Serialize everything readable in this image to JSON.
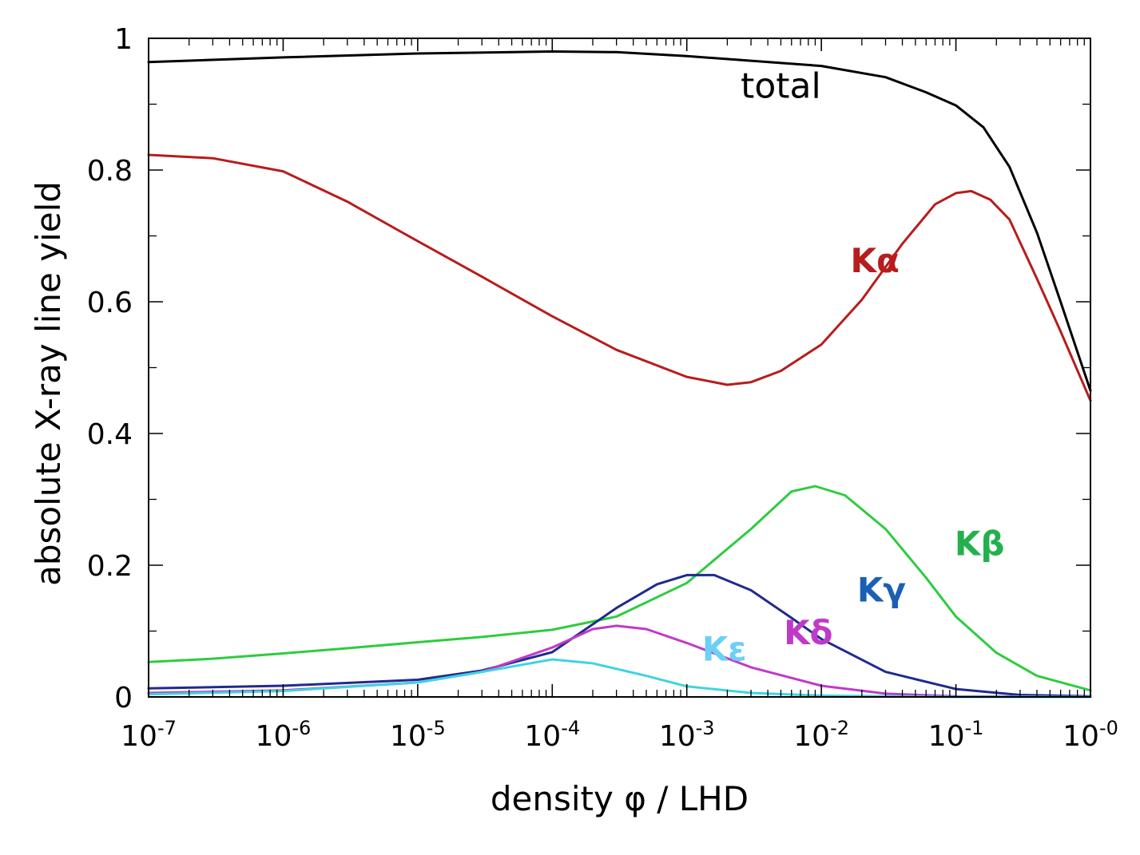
{
  "chart_data": {
    "type": "line",
    "xscale": "log",
    "xlabel": "density φ / LHD",
    "ylabel": "absolute X-ray line yield",
    "xlim": [
      1e-07,
      1
    ],
    "ylim": [
      0,
      1
    ],
    "grid": false,
    "legend": "inline labels",
    "x_ticks": [
      {
        "value": 1e-07,
        "base": "10",
        "exp": "-7"
      },
      {
        "value": 1e-06,
        "base": "10",
        "exp": "-6"
      },
      {
        "value": 1e-05,
        "base": "10",
        "exp": "-5"
      },
      {
        "value": 0.0001,
        "base": "10",
        "exp": "-4"
      },
      {
        "value": 0.001,
        "base": "10",
        "exp": "-3"
      },
      {
        "value": 0.01,
        "base": "10",
        "exp": "-2"
      },
      {
        "value": 0.1,
        "base": "10",
        "exp": "-1"
      },
      {
        "value": 1,
        "base": "10",
        "exp": "-0"
      }
    ],
    "y_ticks": [
      {
        "value": 0,
        "label": "0"
      },
      {
        "value": 0.2,
        "label": "0.2"
      },
      {
        "value": 0.4,
        "label": "0.4"
      },
      {
        "value": 0.6,
        "label": "0.6"
      },
      {
        "value": 0.8,
        "label": "0.8"
      },
      {
        "value": 1,
        "label": "1"
      }
    ],
    "series": [
      {
        "name": "total",
        "color": "#000000",
        "points": [
          [
            1e-07,
            0.964
          ],
          [
            1e-06,
            0.971
          ],
          [
            1e-05,
            0.977
          ],
          [
            0.0001,
            0.98
          ],
          [
            0.0003,
            0.979
          ],
          [
            0.001,
            0.973
          ],
          [
            0.003,
            0.966
          ],
          [
            0.01,
            0.958
          ],
          [
            0.03,
            0.941
          ],
          [
            0.06,
            0.918
          ],
          [
            0.1,
            0.898
          ],
          [
            0.16,
            0.865
          ],
          [
            0.25,
            0.805
          ],
          [
            0.4,
            0.705
          ],
          [
            0.6,
            0.6
          ],
          [
            1,
            0.465
          ]
        ]
      },
      {
        "name": "Kα",
        "color": "#b81c1c",
        "points": [
          [
            1e-07,
            0.823
          ],
          [
            3e-07,
            0.818
          ],
          [
            1e-06,
            0.798
          ],
          [
            3e-06,
            0.752
          ],
          [
            1e-05,
            0.692
          ],
          [
            3e-05,
            0.638
          ],
          [
            0.0001,
            0.578
          ],
          [
            0.0003,
            0.527
          ],
          [
            0.001,
            0.486
          ],
          [
            0.002,
            0.474
          ],
          [
            0.003,
            0.478
          ],
          [
            0.005,
            0.495
          ],
          [
            0.01,
            0.535
          ],
          [
            0.02,
            0.603
          ],
          [
            0.04,
            0.688
          ],
          [
            0.07,
            0.748
          ],
          [
            0.1,
            0.765
          ],
          [
            0.13,
            0.768
          ],
          [
            0.18,
            0.755
          ],
          [
            0.25,
            0.725
          ],
          [
            0.4,
            0.635
          ],
          [
            0.6,
            0.555
          ],
          [
            1,
            0.45
          ]
        ]
      },
      {
        "name": "Kβ",
        "color": "#2ecc40",
        "points": [
          [
            1e-07,
            0.053
          ],
          [
            3e-07,
            0.058
          ],
          [
            1e-06,
            0.066
          ],
          [
            3e-06,
            0.074
          ],
          [
            1e-05,
            0.083
          ],
          [
            3e-05,
            0.091
          ],
          [
            0.0001,
            0.102
          ],
          [
            0.0003,
            0.122
          ],
          [
            0.001,
            0.173
          ],
          [
            0.003,
            0.255
          ],
          [
            0.006,
            0.312
          ],
          [
            0.009,
            0.32
          ],
          [
            0.015,
            0.306
          ],
          [
            0.03,
            0.255
          ],
          [
            0.06,
            0.181
          ],
          [
            0.1,
            0.122
          ],
          [
            0.2,
            0.067
          ],
          [
            0.4,
            0.032
          ],
          [
            1,
            0.01
          ]
        ]
      },
      {
        "name": "Kγ",
        "color": "#1f2a8f",
        "points": [
          [
            1e-07,
            0.013
          ],
          [
            1e-06,
            0.017
          ],
          [
            1e-05,
            0.026
          ],
          [
            3e-05,
            0.04
          ],
          [
            0.0001,
            0.068
          ],
          [
            0.0003,
            0.135
          ],
          [
            0.0006,
            0.171
          ],
          [
            0.001,
            0.185
          ],
          [
            0.0016,
            0.185
          ],
          [
            0.003,
            0.162
          ],
          [
            0.006,
            0.12
          ],
          [
            0.01,
            0.088
          ],
          [
            0.03,
            0.038
          ],
          [
            0.1,
            0.012
          ],
          [
            0.3,
            0.003
          ],
          [
            1,
            0.001
          ]
        ]
      },
      {
        "name": "Kδ",
        "color": "#c03ac8",
        "points": [
          [
            1e-07,
            0.006
          ],
          [
            1e-06,
            0.01
          ],
          [
            1e-05,
            0.022
          ],
          [
            3e-05,
            0.038
          ],
          [
            0.0001,
            0.075
          ],
          [
            0.0002,
            0.103
          ],
          [
            0.0003,
            0.108
          ],
          [
            0.0005,
            0.103
          ],
          [
            0.001,
            0.082
          ],
          [
            0.003,
            0.045
          ],
          [
            0.01,
            0.017
          ],
          [
            0.03,
            0.005
          ],
          [
            0.1,
            0.001
          ],
          [
            1,
            0.0
          ]
        ]
      },
      {
        "name": "Kε",
        "color": "#3fd4e0",
        "points": [
          [
            1e-07,
            0.004
          ],
          [
            1e-06,
            0.009
          ],
          [
            1e-05,
            0.022
          ],
          [
            3e-05,
            0.038
          ],
          [
            0.0001,
            0.057
          ],
          [
            0.0002,
            0.051
          ],
          [
            0.0005,
            0.032
          ],
          [
            0.001,
            0.016
          ],
          [
            0.003,
            0.006
          ],
          [
            0.01,
            0.002
          ],
          [
            0.1,
            0.0
          ],
          [
            1,
            0.0
          ]
        ]
      }
    ],
    "annotations": [
      {
        "text": "total",
        "x": 0.005,
        "y": 0.91,
        "color": "#000000",
        "series": "total"
      },
      {
        "text": "Kα",
        "x": 0.025,
        "y": 0.645,
        "color": "#b81c1c",
        "series": "Kα"
      },
      {
        "text": "Kβ",
        "x": 0.15,
        "y": 0.215,
        "color": "#22b14c",
        "series": "Kβ"
      },
      {
        "text": "Kγ",
        "x": 0.028,
        "y": 0.145,
        "color": "#1a5fb4",
        "series": "Kγ"
      },
      {
        "text": "Kδ",
        "x": 0.008,
        "y": 0.08,
        "color": "#c03ac8",
        "series": "Kδ"
      },
      {
        "text": "Kε",
        "x": 0.0019,
        "y": 0.055,
        "color": "#6ccff6",
        "series": "Kε"
      }
    ]
  }
}
